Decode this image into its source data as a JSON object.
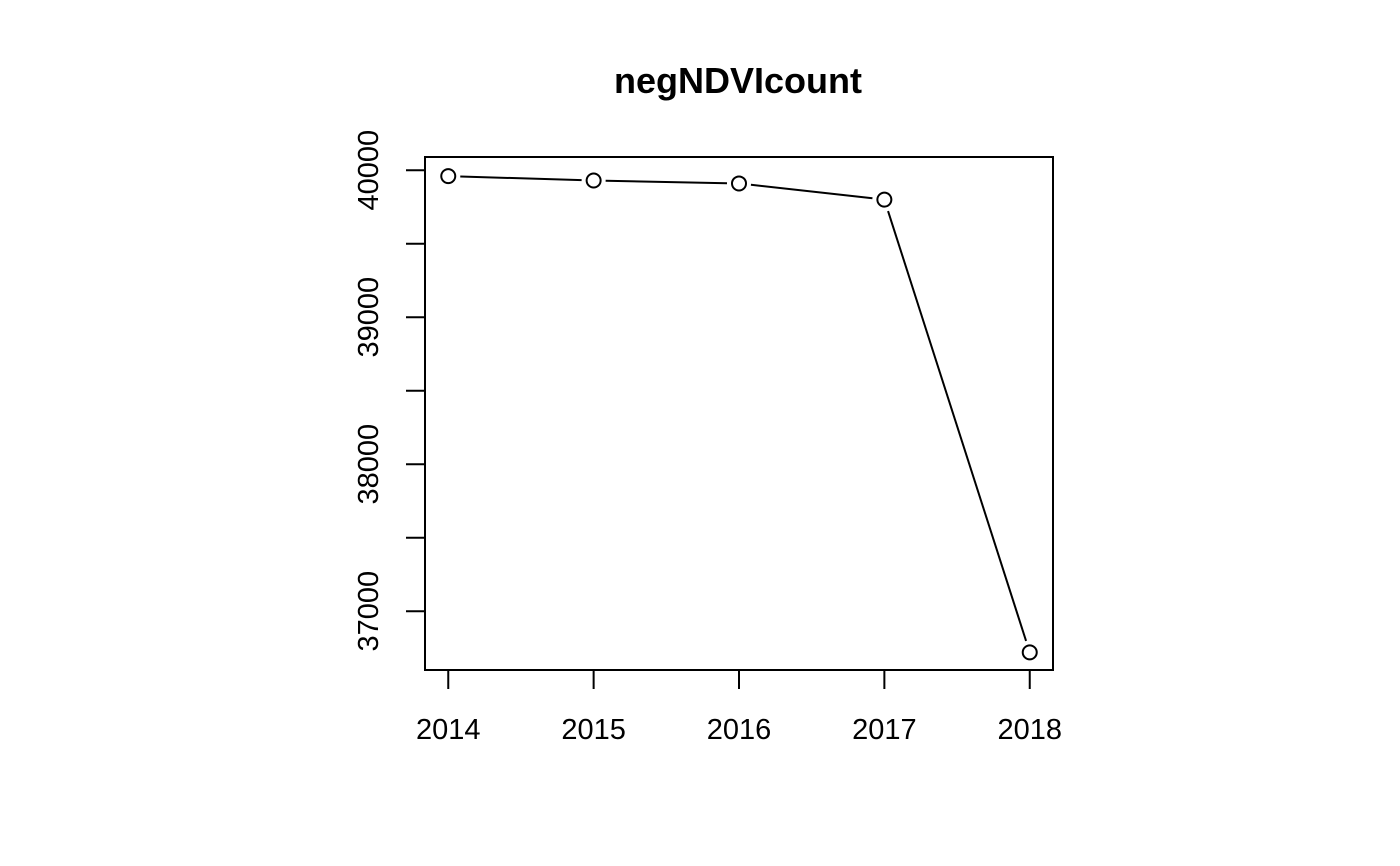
{
  "chart_data": {
    "type": "line",
    "title": "negNDVIcount",
    "xlabel": "",
    "ylabel": "",
    "x": [
      2014,
      2015,
      2016,
      2017,
      2018
    ],
    "series": [
      {
        "values": [
          39960,
          39930,
          39910,
          39800,
          36720
        ],
        "marker": "open-circle",
        "line": true
      }
    ],
    "x_ticks": [
      2014,
      2015,
      2016,
      2017,
      2018
    ],
    "x_tick_labels": [
      "2014",
      "2015",
      "2016",
      "2017",
      "2018"
    ],
    "y_major_ticks": [
      37000,
      38000,
      39000,
      40000
    ],
    "y_tick_labels": [
      "37000",
      "38000",
      "39000",
      "40000"
    ],
    "y_minor_ticks": [
      37500,
      38500,
      39500
    ],
    "xlim": [
      2013.84,
      2018.16
    ],
    "ylim": [
      36600,
      40090
    ],
    "grid": false,
    "legend": "none",
    "colors": {
      "line": "#000000",
      "marker_stroke": "#000000",
      "marker_fill": "#ffffff",
      "background": "#ffffff"
    }
  }
}
